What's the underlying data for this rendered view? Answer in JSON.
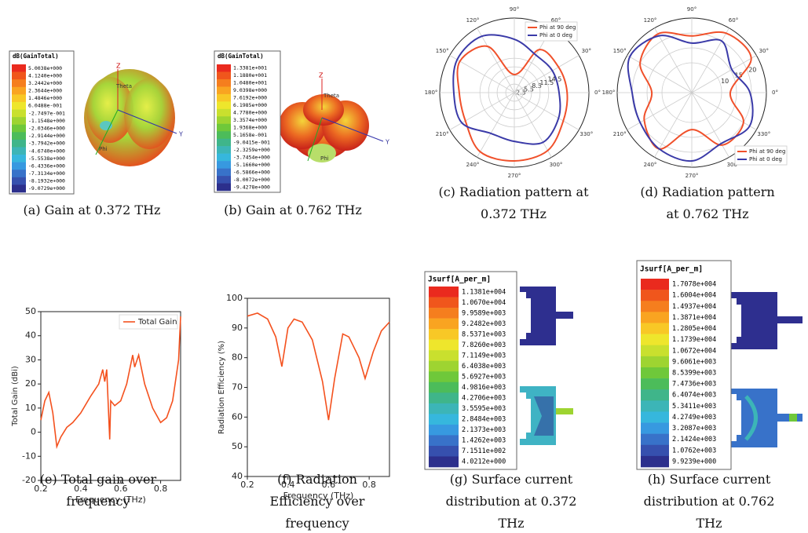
{
  "chart_data": [
    {
      "type": "polar",
      "caption": "(c) Radiation pattern at 0.372 THz",
      "theta": [
        {
          "value": 0,
          "label": "0°"
        },
        {
          "value": 30,
          "label": "30°"
        },
        {
          "value": 60,
          "label": "60°"
        },
        {
          "value": 90,
          "label": "90°"
        },
        {
          "value": 120,
          "label": "120°"
        },
        {
          "value": 150,
          "label": "150°"
        },
        {
          "value": 180,
          "label": "180°"
        },
        {
          "value": 210,
          "label": "210°"
        },
        {
          "value": 240,
          "label": "240°"
        },
        {
          "value": 270,
          "label": "270°"
        },
        {
          "value": 300,
          "label": "300°"
        },
        {
          "value": 330,
          "label": "330°"
        }
      ],
      "rlim": [
        2.5,
        28.5
      ],
      "rticks": [
        2.5,
        5.5,
        8.5,
        11.5,
        14.5
      ],
      "legend": "upper right",
      "series": [
        {
          "name": "Phi at 90 deg",
          "color": "#f0502a",
          "values": [
            20.9,
            20.3,
            19.8,
            8.8,
            21.1,
            24.4,
            21.7,
            22.2,
            26.3,
            26.3,
            25.8,
            22.2
          ]
        },
        {
          "name": "Phi at 0 deg",
          "color": "#3a3aa8",
          "values": [
            18.1,
            17.8,
            17.6,
            21.1,
            25.2,
            25.5,
            23.6,
            23.6,
            18.9,
            19.5,
            22.5,
            20.3
          ]
        }
      ]
    },
    {
      "type": "polar",
      "caption": "(d) Radiation pattern at 0.762 THz",
      "theta": [
        {
          "value": 0,
          "label": "0°"
        },
        {
          "value": 30,
          "label": "30°"
        },
        {
          "value": 60,
          "label": "60°"
        },
        {
          "value": 90,
          "label": "90°"
        },
        {
          "value": 120,
          "label": "120°"
        },
        {
          "value": 150,
          "label": "150°"
        },
        {
          "value": 180,
          "label": "180°"
        },
        {
          "value": 210,
          "label": "210°"
        },
        {
          "value": 240,
          "label": "240°"
        },
        {
          "value": 270,
          "label": "270°"
        },
        {
          "value": 300,
          "label": "300°"
        },
        {
          "value": 330,
          "label": "330°"
        }
      ],
      "rlim": [
        0,
        25
      ],
      "rticks": [
        10,
        15,
        20
      ],
      "legend": "lower right",
      "series": [
        {
          "name": "Phi at 90 deg",
          "color": "#f0502a",
          "values": [
            12.9,
            23,
            23,
            19,
            22.7,
            20,
            13.4,
            18.4,
            21.8,
            12.4,
            20.3,
            20
          ]
        },
        {
          "name": "Phi at 0 deg",
          "color": "#3a3aa8",
          "values": [
            19.5,
            15.5,
            20,
            16.6,
            22,
            24,
            20,
            20,
            21.8,
            22.9,
            19.7,
            22.4
          ]
        }
      ]
    },
    {
      "type": "line",
      "caption": "(e) Total gain over frequency",
      "x_label": "Frequency (THz)",
      "y_label": "Total Gain (dBi)",
      "xlim": [
        0.2,
        0.9
      ],
      "ylim": [
        -20,
        50
      ],
      "xticks": [
        0.2,
        0.4,
        0.6,
        0.8
      ],
      "yticks": [
        -20,
        -10,
        0,
        10,
        20,
        30,
        40,
        50
      ],
      "legend": "upper right",
      "x": [
        0.2,
        0.22,
        0.24,
        0.26,
        0.28,
        0.3,
        0.33,
        0.36,
        0.4,
        0.45,
        0.49,
        0.51,
        0.52,
        0.53,
        0.545,
        0.55,
        0.57,
        0.6,
        0.63,
        0.66,
        0.67,
        0.69,
        0.72,
        0.76,
        0.8,
        0.83,
        0.86,
        0.89,
        0.9
      ],
      "series": [
        {
          "name": "Total Gain",
          "color": "#f4511e",
          "values": [
            5,
            13,
            16.5,
            8,
            -6,
            -2,
            2,
            4,
            8,
            15,
            20,
            26,
            21,
            26,
            -3,
            13,
            11,
            13,
            20,
            32,
            27,
            32,
            20,
            10,
            4,
            6,
            13,
            30,
            48
          ]
        }
      ]
    },
    {
      "type": "line",
      "caption": "(f) Radiation Efficiency over frequency",
      "x_label": "Frequency (THz)",
      "y_label": "Radiation Efficiency (%)",
      "xlim": [
        0.2,
        0.9
      ],
      "ylim": [
        40,
        100
      ],
      "xticks": [
        0.2,
        0.4,
        0.6,
        0.8
      ],
      "yticks": [
        40,
        50,
        60,
        70,
        80,
        90,
        100
      ],
      "x": [
        0.2,
        0.25,
        0.3,
        0.34,
        0.37,
        0.4,
        0.43,
        0.47,
        0.52,
        0.57,
        0.6,
        0.63,
        0.67,
        0.7,
        0.75,
        0.78,
        0.82,
        0.86,
        0.9
      ],
      "series": [
        {
          "color": "#f4511e",
          "values": [
            94,
            95,
            93,
            87,
            77,
            90,
            93,
            92,
            86,
            72,
            59,
            73,
            88,
            87,
            80,
            73,
            82,
            89,
            92
          ]
        }
      ]
    }
  ],
  "figures": [
    {
      "caption": "(a) Gain at 0.372 THz",
      "legend_title": "dB(GainTotal)",
      "labels": [
        "Z",
        "Y",
        "Theta",
        "Phi"
      ],
      "legend_labels": [
        "5.0038e+000",
        "4.1240e+000",
        "3.2442e+000",
        "2.3644e+000",
        "1.4846e+000",
        "6.0488e-001",
        "-2.7497e-001",
        "-1.1548e+000",
        "-2.0346e+000",
        "-2.9144e+000",
        "-3.7942e+000",
        "-4.6740e+000",
        "-5.5538e+000",
        "-6.4336e+000",
        "-7.3134e+000",
        "-8.1932e+000",
        "-9.0729e+000"
      ]
    },
    {
      "caption": "(b) Gain at 0.762 THz",
      "legend_title": "dB(GainTotal)",
      "labels": [
        "Z",
        "Y",
        "Theta",
        "Phi"
      ],
      "legend_labels": [
        "1.3381e+001",
        "1.1880e+001",
        "1.0480e+001",
        "9.0398e+000",
        "7.6192e+000",
        "6.1985e+000",
        "4.7780e+000",
        "3.3574e+000",
        "1.9368e+000",
        "5.1658e-001",
        "-9.0415e-001",
        "-2.3259e+000",
        "-3.7454e+000",
        "-5.1660e+000",
        "-6.5866e+000",
        "-8.0072e+000",
        "-9.4278e+000"
      ]
    },
    {
      "caption": "(g) Surface current distribution at 0.372 THz",
      "legend_title": "Jsurf[A_per_m]",
      "legend_labels": [
        "1.1381e+004",
        "1.0670e+004",
        "9.9589e+003",
        "9.2482e+003",
        "8.5371e+003",
        "7.8260e+003",
        "7.1149e+003",
        "6.4038e+003",
        "5.6927e+003",
        "4.9816e+003",
        "4.2706e+003",
        "3.5595e+003",
        "2.8484e+003",
        "2.1373e+003",
        "1.4262e+003",
        "7.1511e+002",
        "4.0212e+000"
      ]
    },
    {
      "caption": "(h) Surface current distribution at 0.762 THz",
      "legend_title": "Jsurf[A_per_m]",
      "legend_labels": [
        "1.7078e+004",
        "1.6004e+004",
        "1.4937e+004",
        "1.3871e+004",
        "1.2805e+004",
        "1.1739e+004",
        "1.0672e+004",
        "9.6061e+003",
        "8.5399e+003",
        "7.4736e+003",
        "6.4074e+003",
        "5.3411e+003",
        "4.2749e+003",
        "3.2087e+003",
        "2.1424e+003",
        "1.0762e+003",
        "9.9239e+000"
      ]
    }
  ]
}
